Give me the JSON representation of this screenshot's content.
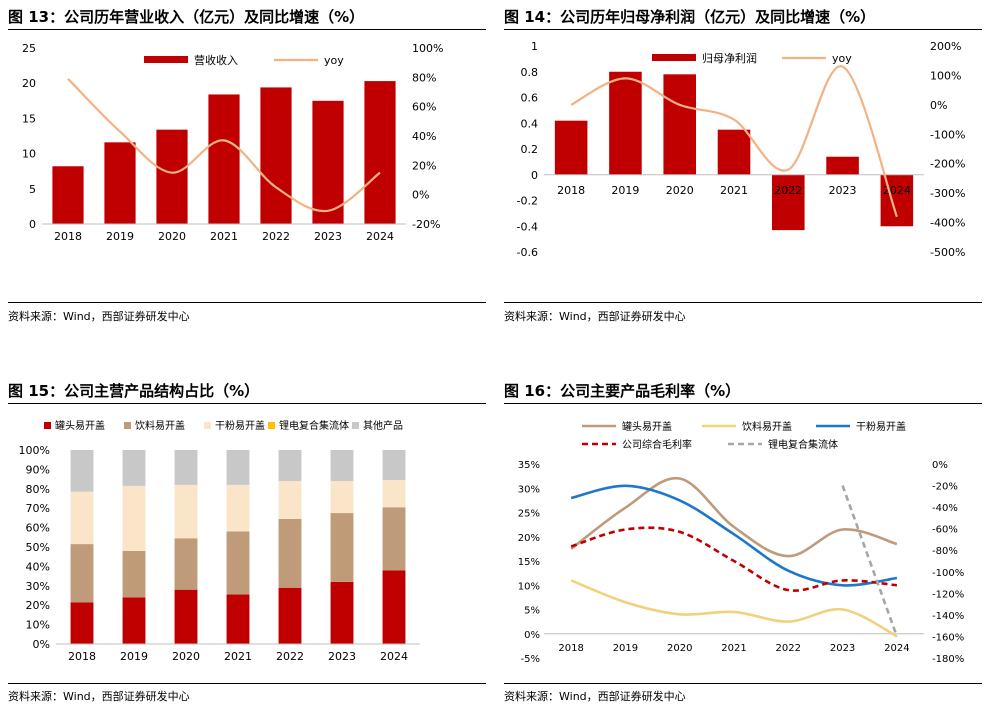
{
  "charts": [
    {
      "title": "图 13：公司历年营业收入（亿元）及同比增速（%）",
      "source": "资料来源：Wind，西部证券研发中心",
      "chart_data": {
        "type": "bar",
        "categories": [
          "2018",
          "2019",
          "2020",
          "2021",
          "2022",
          "2023",
          "2024"
        ],
        "series": [
          {
            "name": "营收收入",
            "type": "bar",
            "axis": "left",
            "color": "#c00000",
            "values": [
              8.2,
              11.6,
              13.4,
              18.4,
              19.4,
              17.5,
              20.3
            ]
          },
          {
            "name": "yoy",
            "type": "line",
            "axis": "right",
            "color": "#f4b183",
            "values": [
              79,
              43,
              15,
              37,
              5,
              -11,
              15
            ]
          }
        ],
        "y_left": {
          "min": 0,
          "max": 25,
          "ticks": [
            "0",
            "5",
            "10",
            "15",
            "20",
            "25"
          ]
        },
        "y_right": {
          "min": -20,
          "max": 100,
          "ticks": [
            "-20%",
            "0%",
            "20%",
            "40%",
            "60%",
            "80%",
            "100%"
          ]
        },
        "legend": "top"
      }
    },
    {
      "title": "图 14：公司历年归母净利润（亿元）及同比增速（%）",
      "source": "资料来源：Wind，西部证券研发中心",
      "chart_data": {
        "type": "bar",
        "categories": [
          "2018",
          "2019",
          "2020",
          "2021",
          "2022",
          "2023",
          "2024"
        ],
        "series": [
          {
            "name": "归母净利润",
            "type": "bar",
            "axis": "left",
            "color": "#c00000",
            "values": [
              0.42,
              0.8,
              0.78,
              0.35,
              -0.43,
              0.14,
              -0.4
            ]
          },
          {
            "name": "yoy",
            "type": "line",
            "axis": "right",
            "color": "#f4b183",
            "values": [
              0,
              90,
              0,
              -50,
              -220,
              130,
              -380
            ]
          }
        ],
        "y_left": {
          "min": -0.6,
          "max": 1,
          "ticks": [
            "-0.6",
            "-0.4",
            "-0.2",
            "0",
            "0.2",
            "0.4",
            "0.6",
            "0.8",
            "1"
          ]
        },
        "y_right": {
          "min": -500,
          "max": 200,
          "ticks": [
            "-500%",
            "-400%",
            "-300%",
            "-200%",
            "-100%",
            "0%",
            "100%",
            "200%"
          ]
        },
        "legend": "top"
      }
    },
    {
      "title": "图 15：公司主营产品结构占比（%）",
      "source": "资料来源：Wind，西部证券研发中心",
      "chart_data": {
        "type": "bar",
        "stacked": true,
        "categories": [
          "2018",
          "2019",
          "2020",
          "2021",
          "2022",
          "2023",
          "2024"
        ],
        "series": [
          {
            "name": "罐头易开盖",
            "color": "#c00000",
            "values": [
              21.5,
              24,
              28,
              25.5,
              29,
              32,
              38
            ]
          },
          {
            "name": "饮料易开盖",
            "color": "#bf9b7a",
            "values": [
              30,
              24,
              26.5,
              32.5,
              35.5,
              35.5,
              32.5
            ]
          },
          {
            "name": "干粉易开盖",
            "color": "#fbe5c8",
            "values": [
              27,
              33.5,
              27.5,
              24,
              19.5,
              16.5,
              14
            ]
          },
          {
            "name": "锂电复合集流体",
            "color": "#ffc000",
            "values": [
              0,
              0,
              0,
              0,
              0,
              0,
              0
            ]
          },
          {
            "name": "其他产品",
            "color": "#c8c8c8",
            "values": [
              21.5,
              18.5,
              18,
              18,
              16,
              16,
              15.5
            ]
          }
        ],
        "y": {
          "min": 0,
          "max": 100,
          "ticks": [
            "0%",
            "10%",
            "20%",
            "30%",
            "40%",
            "50%",
            "60%",
            "70%",
            "80%",
            "90%",
            "100%"
          ]
        },
        "legend": "top"
      }
    },
    {
      "title": "图 16：公司主要产品毛利率（%）",
      "source": "资料来源：Wind，西部证券研发中心",
      "chart_data": {
        "type": "line",
        "categories": [
          "2018",
          "2019",
          "2020",
          "2021",
          "2022",
          "2023",
          "2024"
        ],
        "series": [
          {
            "name": "罐头易开盖",
            "axis": "left",
            "color": "#bf9b7a",
            "dash": "",
            "values": [
              17.5,
              26,
              32,
              22,
              16,
              21.5,
              18.5
            ]
          },
          {
            "name": "饮料易开盖",
            "axis": "left",
            "color": "#f0d27a",
            "dash": "",
            "values": [
              11,
              6.5,
              4,
              4.5,
              2.5,
              5,
              -0.5
            ]
          },
          {
            "name": "干粉易开盖",
            "axis": "left",
            "color": "#1f77c7",
            "dash": "",
            "values": [
              28,
              30.5,
              27.5,
              20.5,
              13,
              10,
              11.5
            ]
          },
          {
            "name": "公司综合毛利率",
            "axis": "left",
            "color": "#c00000",
            "dash": "6,4",
            "values": [
              18,
              21.5,
              21,
              15,
              9,
              11,
              10
            ]
          },
          {
            "name": "锂电复合集流体",
            "axis": "right",
            "color": "#a6a6a6",
            "dash": "6,4",
            "values": [
              null,
              null,
              null,
              null,
              null,
              -20,
              -160
            ]
          }
        ],
        "y_left": {
          "min": -5,
          "max": 35,
          "ticks": [
            "-5%",
            "0%",
            "5%",
            "10%",
            "15%",
            "20%",
            "25%",
            "30%",
            "35%"
          ]
        },
        "y_right": {
          "min": -180,
          "max": 0,
          "ticks": [
            "-180%",
            "-160%",
            "-140%",
            "-120%",
            "-100%",
            "-80%",
            "-60%",
            "-40%",
            "-20%",
            "0%"
          ]
        },
        "legend": "top"
      }
    }
  ]
}
